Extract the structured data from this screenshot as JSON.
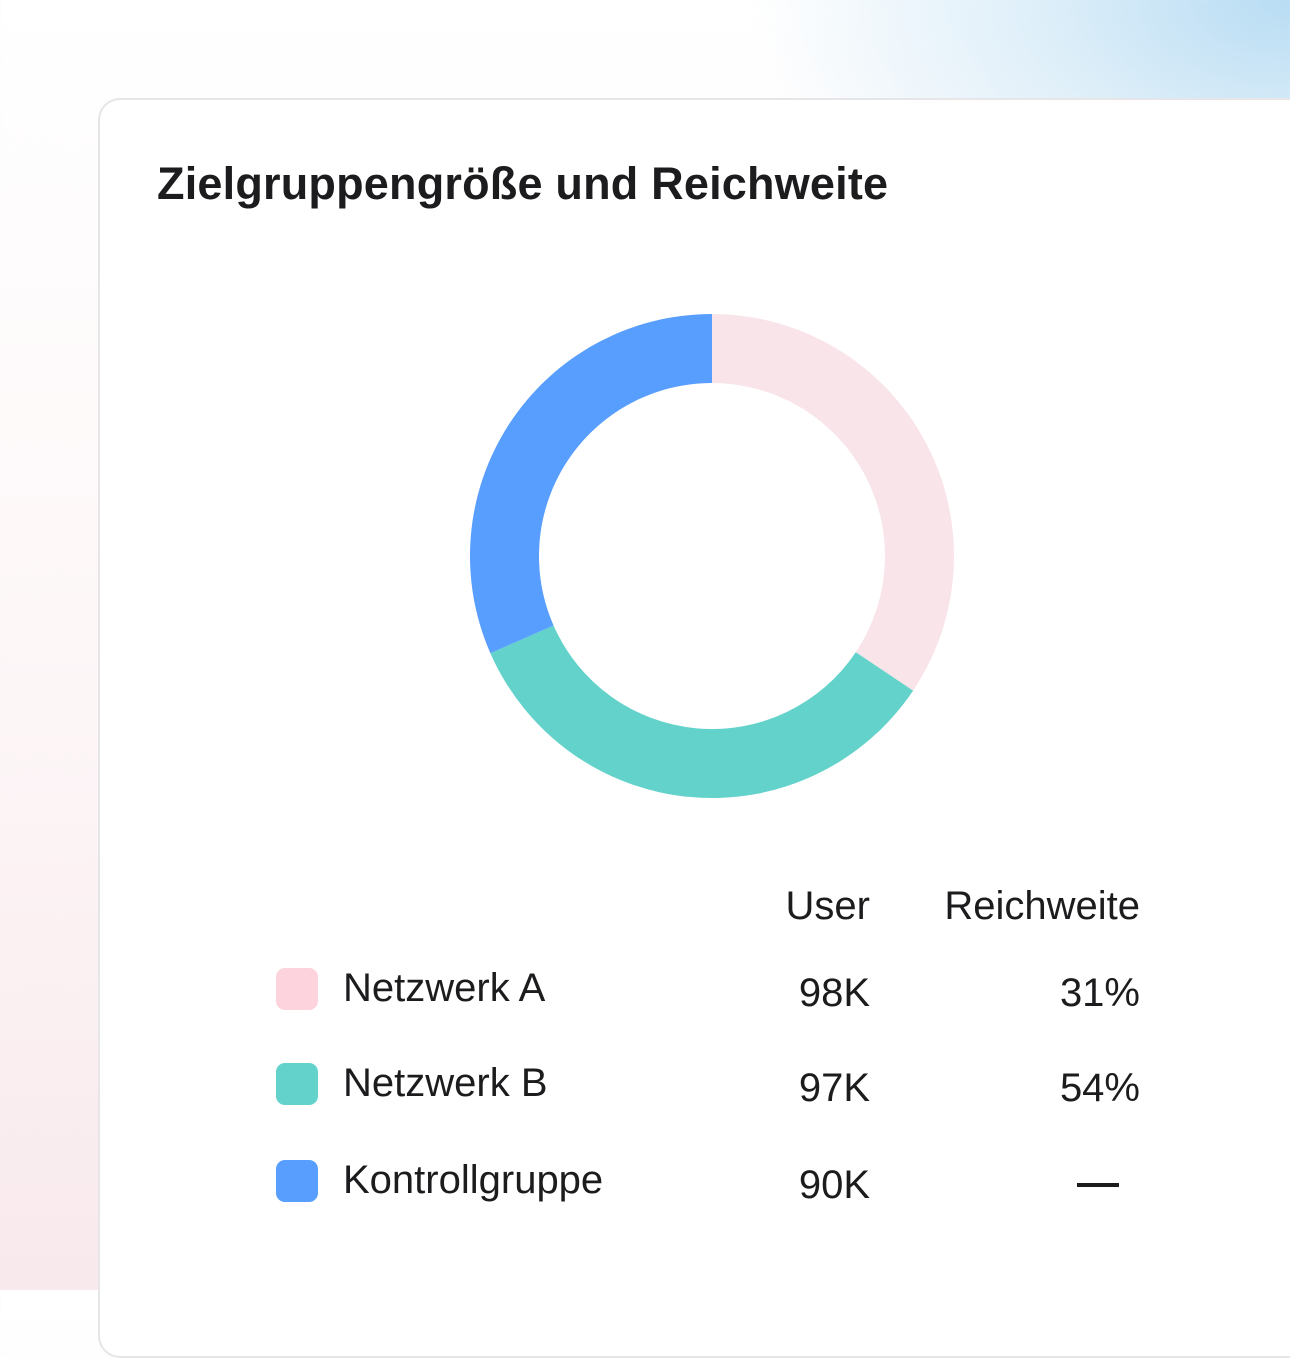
{
  "title": "Zielgruppengröße und Reichweite",
  "table": {
    "headers": {
      "users": "User",
      "reach": "Reichweite"
    },
    "rows": [
      {
        "label": "Netzwerk A",
        "users": "98K",
        "reach": "31%",
        "color": "#fdd3dd"
      },
      {
        "label": "Netzwerk B",
        "users": "97K",
        "reach": "54%",
        "color": "#62d2ca"
      },
      {
        "label": "Kontrollgruppe",
        "users": "90K",
        "reach": "—",
        "color": "#589efe"
      }
    ]
  },
  "chart_data": {
    "type": "pie",
    "variant": "donut",
    "title": "Zielgruppengröße und Reichweite",
    "categories": [
      "Netzwerk A",
      "Netzwerk B",
      "Kontrollgruppe"
    ],
    "values": [
      98,
      97,
      90
    ],
    "unit": "K",
    "colors": [
      "#f9e4ea",
      "#62d2ca",
      "#589efe"
    ],
    "start_angle": "top, clockwise"
  }
}
